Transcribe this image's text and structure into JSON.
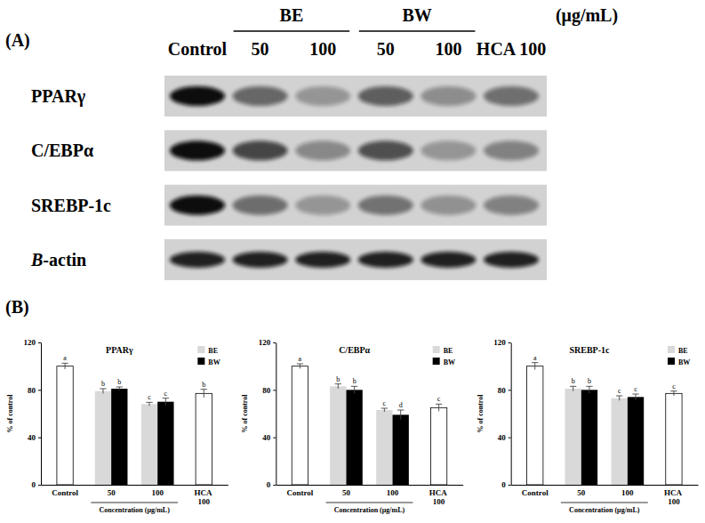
{
  "panel_labels": [
    "(A)",
    "(B)"
  ],
  "blot": {
    "unit": "(μg/mL)",
    "lanes": [
      {
        "label": "Control"
      },
      {
        "group": "BE",
        "label": "50"
      },
      {
        "group": "BE",
        "label": "100"
      },
      {
        "group": "BW",
        "label": "50"
      },
      {
        "group": "BW",
        "label": "100"
      },
      {
        "label": "HCA 100"
      }
    ],
    "rows": [
      "PPARγ",
      "C/EBPα",
      "SREBP-1c",
      "B-actin"
    ]
  },
  "chart_data": [
    {
      "type": "bar",
      "title": "PPARγ",
      "x_label": "Concentration (μg/mL)",
      "y_label": "% of control",
      "categories": [
        "Control",
        "50",
        "100",
        "HCA 100"
      ],
      "ylim": [
        0,
        120
      ],
      "yticks": [
        0,
        40,
        80,
        120
      ],
      "legend": "top-right",
      "series": [
        {
          "color": "#ffffff",
          "values": [
            100,
            null,
            null,
            77
          ],
          "errors": [
            2.5,
            null,
            null,
            3.5
          ],
          "letters": [
            "a",
            null,
            null,
            "b"
          ]
        },
        {
          "name": "BE",
          "color": "#d9d9d9",
          "values": [
            null,
            79,
            68,
            null
          ],
          "errors": [
            null,
            2,
            1.5,
            null
          ],
          "letters": [
            null,
            "b",
            "c",
            null
          ]
        },
        {
          "name": "BW",
          "color": "#000000",
          "values": [
            null,
            81,
            70,
            null
          ],
          "errors": [
            null,
            1.5,
            3,
            null
          ],
          "letters": [
            null,
            "b",
            "c",
            null
          ]
        }
      ]
    },
    {
      "type": "bar",
      "title": "C/EBPα",
      "x_label": "Concentration (μg/mL)",
      "y_label": "% of control",
      "categories": [
        "Control",
        "50",
        "100",
        "HCA 100"
      ],
      "ylim": [
        0,
        120
      ],
      "yticks": [
        0,
        40,
        80,
        120
      ],
      "legend": "top-right",
      "series": [
        {
          "color": "#ffffff",
          "values": [
            100,
            null,
            null,
            65
          ],
          "errors": [
            2,
            null,
            null,
            3
          ],
          "letters": [
            "a",
            null,
            null,
            "c"
          ]
        },
        {
          "name": "BE",
          "color": "#d9d9d9",
          "values": [
            null,
            83,
            63,
            null
          ],
          "errors": [
            null,
            2,
            1.5,
            null
          ],
          "letters": [
            null,
            "b",
            "c",
            null
          ]
        },
        {
          "name": "BW",
          "color": "#000000",
          "values": [
            null,
            80,
            59,
            null
          ],
          "errors": [
            null,
            3,
            4,
            null
          ],
          "letters": [
            null,
            "b",
            "d",
            null
          ]
        }
      ]
    },
    {
      "type": "bar",
      "title": "SREBP-1c",
      "x_label": "Concentration (μg/mL)",
      "y_label": "% of control",
      "categories": [
        "Control",
        "50",
        "100",
        "HCA 100"
      ],
      "ylim": [
        0,
        120
      ],
      "yticks": [
        0,
        40,
        80,
        120
      ],
      "legend": "top-right",
      "series": [
        {
          "color": "#ffffff",
          "values": [
            100,
            null,
            null,
            77
          ],
          "errors": [
            3,
            null,
            null,
            2
          ],
          "letters": [
            "a",
            null,
            null,
            "c"
          ]
        },
        {
          "name": "BE",
          "color": "#d9d9d9",
          "values": [
            null,
            81,
            73,
            null
          ],
          "errors": [
            null,
            2,
            2,
            null
          ],
          "letters": [
            null,
            "b",
            "c",
            null
          ]
        },
        {
          "name": "BW",
          "color": "#000000",
          "values": [
            null,
            80,
            74,
            null
          ],
          "errors": [
            null,
            3,
            2.5,
            null
          ],
          "letters": [
            null,
            "b",
            "c",
            null
          ]
        }
      ]
    }
  ]
}
